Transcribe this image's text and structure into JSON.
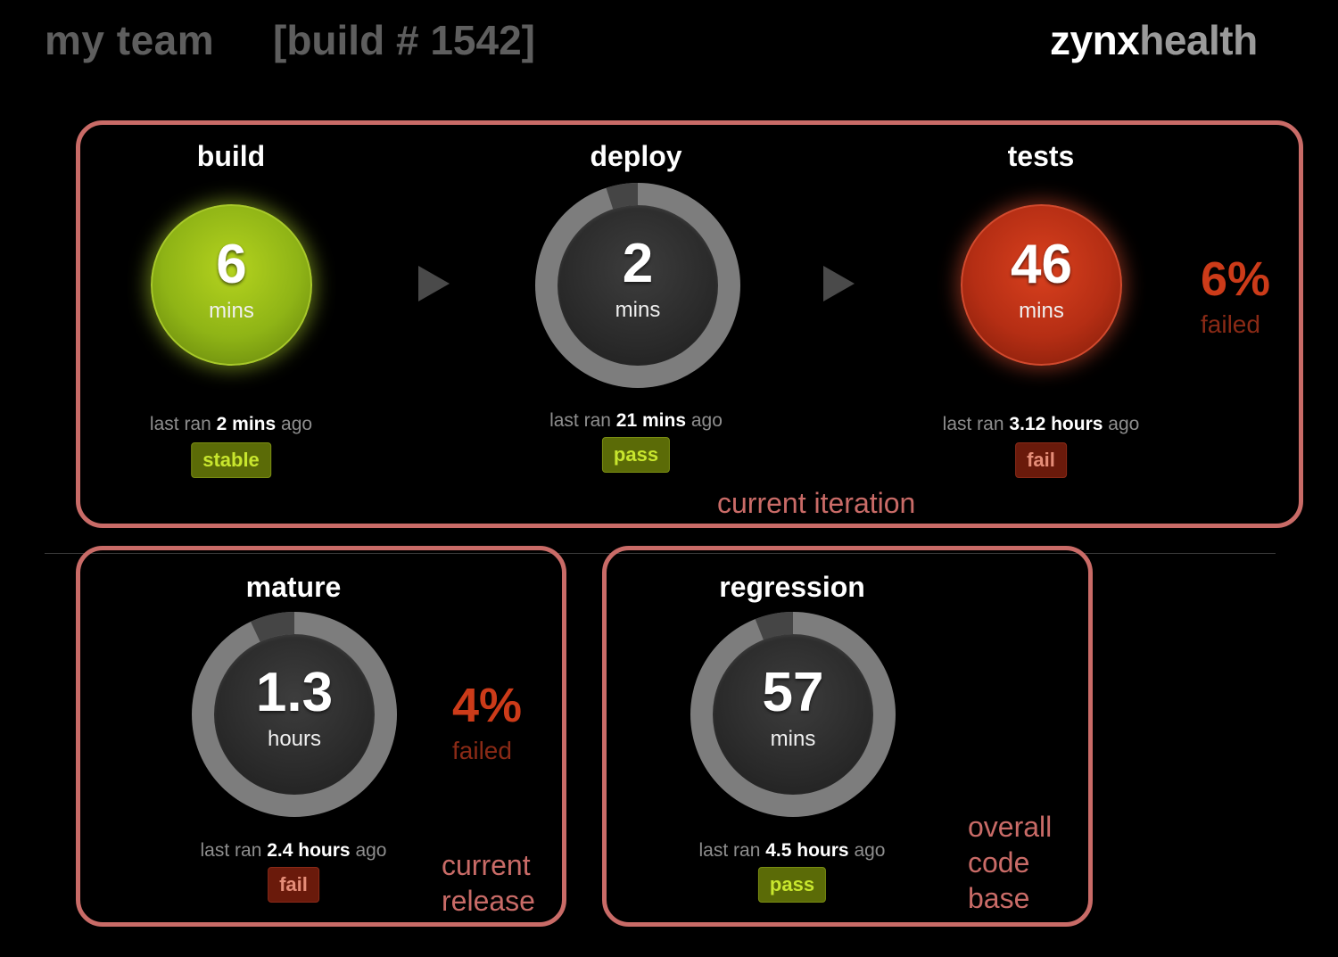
{
  "header": {
    "team": "my team",
    "build": "[build # 1542]",
    "logo_part1": "zynx",
    "logo_part2": "health"
  },
  "colors": {
    "panel_border": "#c96b67",
    "ok_green": "#8fb416",
    "fail_red": "#b52e14",
    "ring_gray": "#7d7d7d",
    "ring_dark": "#454545",
    "failed_pct": "#cc3b19"
  },
  "iteration": {
    "caption": "current iteration",
    "build": {
      "title": "build",
      "value": "6",
      "unit": "mins",
      "last_ran_prefix": "last ran",
      "last_ran_value": "2 mins",
      "last_ran_suffix": "ago",
      "status": "stable"
    },
    "deploy": {
      "title": "deploy",
      "value": "2",
      "unit": "mins",
      "last_ran_prefix": "last ran",
      "last_ran_value": "21 mins",
      "last_ran_suffix": "ago",
      "status": "pass",
      "progress": 0.95
    },
    "tests": {
      "title": "tests",
      "value": "46",
      "unit": "mins",
      "last_ran_prefix": "last ran",
      "last_ran_value": "3.12 hours",
      "last_ran_suffix": "ago",
      "status": "fail",
      "failed_pct": "6%",
      "failed_label": "failed"
    }
  },
  "release": {
    "caption_line1": "current",
    "caption_line2": "release",
    "mature": {
      "title": "mature",
      "value": "1.3",
      "unit": "hours",
      "last_ran_prefix": "last ran",
      "last_ran_value": "2.4 hours",
      "last_ran_suffix": "ago",
      "status": "fail",
      "failed_pct": "4%",
      "failed_label": "failed",
      "progress": 0.93
    }
  },
  "codebase": {
    "caption_line1": "overall",
    "caption_line2": "code",
    "caption_line3": "base",
    "regression": {
      "title": "regression",
      "value": "57",
      "unit": "mins",
      "last_ran_prefix": "last ran",
      "last_ran_value": "4.5 hours",
      "last_ran_suffix": "ago",
      "status": "pass",
      "progress": 0.94
    }
  }
}
